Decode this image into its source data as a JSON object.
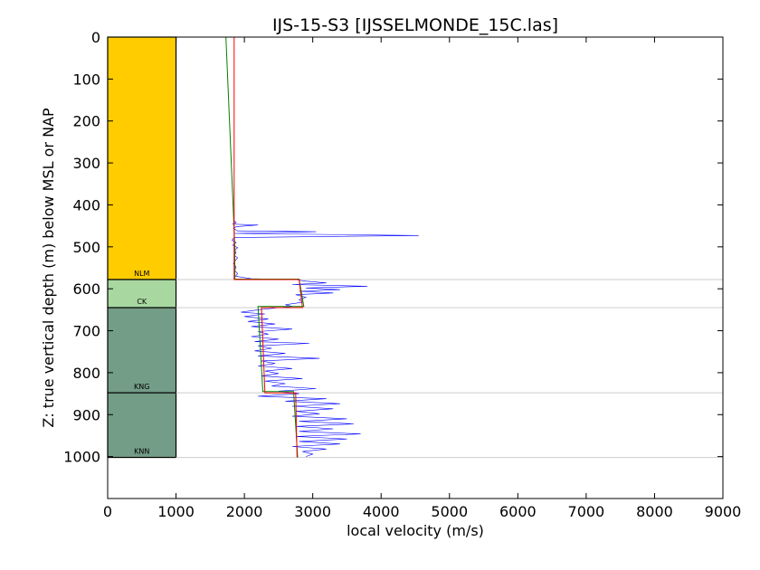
{
  "chart_data": {
    "type": "line",
    "title": "IJS-15-S3 [IJSSELMONDE_15C.las]",
    "xlabel": "local velocity (m/s)",
    "ylabel": "Z: true vertical depth (m) below MSL or NAP",
    "xlim": [
      0,
      9000
    ],
    "ylim": [
      1100,
      0
    ],
    "y_inverted": true,
    "xticks": [
      0,
      1000,
      2000,
      3000,
      4000,
      5000,
      6000,
      7000,
      8000,
      9000
    ],
    "yticks": [
      0,
      100,
      200,
      300,
      400,
      500,
      600,
      700,
      800,
      900,
      1000
    ],
    "grid": false,
    "legend": "none",
    "formations": [
      {
        "label": "NLM",
        "top": 0,
        "base": 578,
        "color": "#FFCC00",
        "x_range": [
          0,
          1000
        ]
      },
      {
        "label": "CK",
        "top": 578,
        "base": 645,
        "color": "#A8D8A0",
        "x_range": [
          0,
          1000
        ]
      },
      {
        "label": "KNG",
        "top": 645,
        "base": 848,
        "color": "#739D86",
        "x_range": [
          0,
          1000
        ]
      },
      {
        "label": "KNN",
        "top": 848,
        "base": 1002,
        "color": "#739D86",
        "x_range": [
          0,
          1000
        ]
      }
    ],
    "horizons": [
      578,
      645,
      848,
      1002
    ],
    "series": [
      {
        "color": "#0000FF",
        "points": [
          [
            1850,
            438
          ],
          [
            1880,
            442
          ],
          [
            1830,
            446
          ],
          [
            2200,
            448
          ],
          [
            1880,
            452
          ],
          [
            1840,
            456
          ],
          [
            1900,
            462
          ],
          [
            3050,
            464
          ],
          [
            1860,
            468
          ],
          [
            4550,
            473
          ],
          [
            1850,
            478
          ],
          [
            1820,
            484
          ],
          [
            1880,
            490
          ],
          [
            1830,
            496
          ],
          [
            1900,
            502
          ],
          [
            1860,
            508
          ],
          [
            1880,
            514
          ],
          [
            1850,
            520
          ],
          [
            1900,
            526
          ],
          [
            1870,
            532
          ],
          [
            1840,
            540
          ],
          [
            1880,
            548
          ],
          [
            1860,
            556
          ],
          [
            1900,
            564
          ],
          [
            1870,
            570
          ],
          [
            2100,
            576
          ],
          [
            2750,
            578
          ],
          [
            2900,
            582
          ],
          [
            3200,
            586
          ],
          [
            2700,
            590
          ],
          [
            3800,
            594
          ],
          [
            2900,
            598
          ],
          [
            3400,
            602
          ],
          [
            2800,
            606
          ],
          [
            3300,
            610
          ],
          [
            2750,
            614
          ],
          [
            2900,
            620
          ],
          [
            2800,
            626
          ],
          [
            2850,
            632
          ],
          [
            2600,
            638
          ],
          [
            2700,
            642
          ],
          [
            2450,
            646
          ],
          [
            2200,
            650
          ],
          [
            1950,
            656
          ],
          [
            2300,
            660
          ],
          [
            2000,
            666
          ],
          [
            2350,
            672
          ],
          [
            2050,
            678
          ],
          [
            2450,
            684
          ],
          [
            2100,
            690
          ],
          [
            2700,
            696
          ],
          [
            2200,
            702
          ],
          [
            2350,
            708
          ],
          [
            2100,
            714
          ],
          [
            2500,
            720
          ],
          [
            2150,
            726
          ],
          [
            2950,
            730
          ],
          [
            2200,
            736
          ],
          [
            2400,
            742
          ],
          [
            2150,
            748
          ],
          [
            2600,
            754
          ],
          [
            2200,
            760
          ],
          [
            3100,
            766
          ],
          [
            2250,
            772
          ],
          [
            2450,
            778
          ],
          [
            2200,
            784
          ],
          [
            2700,
            790
          ],
          [
            2300,
            796
          ],
          [
            2500,
            802
          ],
          [
            2250,
            808
          ],
          [
            2850,
            814
          ],
          [
            2300,
            820
          ],
          [
            2600,
            826
          ],
          [
            2400,
            832
          ],
          [
            3050,
            838
          ],
          [
            2500,
            844
          ],
          [
            2800,
            850
          ],
          [
            2200,
            856
          ],
          [
            3200,
            862
          ],
          [
            2600,
            868
          ],
          [
            3400,
            874
          ],
          [
            2700,
            880
          ],
          [
            3300,
            886
          ],
          [
            2750,
            892
          ],
          [
            3100,
            898
          ],
          [
            2700,
            904
          ],
          [
            3500,
            910
          ],
          [
            2800,
            916
          ],
          [
            3600,
            922
          ],
          [
            2750,
            928
          ],
          [
            3300,
            934
          ],
          [
            2800,
            940
          ],
          [
            3700,
            946
          ],
          [
            2750,
            952
          ],
          [
            3500,
            958
          ],
          [
            2800,
            964
          ],
          [
            3400,
            970
          ],
          [
            2700,
            976
          ],
          [
            3200,
            982
          ],
          [
            2850,
            988
          ],
          [
            3000,
            994
          ],
          [
            2900,
            1000
          ]
        ]
      },
      {
        "color": "#008000",
        "points": [
          [
            1730,
            0
          ],
          [
            1840,
            420
          ],
          [
            1860,
            500
          ],
          [
            1860,
            577
          ],
          [
            2800,
            577
          ],
          [
            2870,
            642
          ],
          [
            2200,
            642
          ],
          [
            2270,
            845
          ],
          [
            2720,
            845
          ],
          [
            2780,
            1002
          ]
        ]
      },
      {
        "color": "#FF0000",
        "points": [
          [
            1850,
            0
          ],
          [
            1850,
            578
          ],
          [
            2800,
            578
          ],
          [
            2850,
            645
          ],
          [
            2250,
            645
          ],
          [
            2300,
            848
          ],
          [
            2750,
            848
          ],
          [
            2770,
            1002
          ]
        ]
      }
    ]
  }
}
